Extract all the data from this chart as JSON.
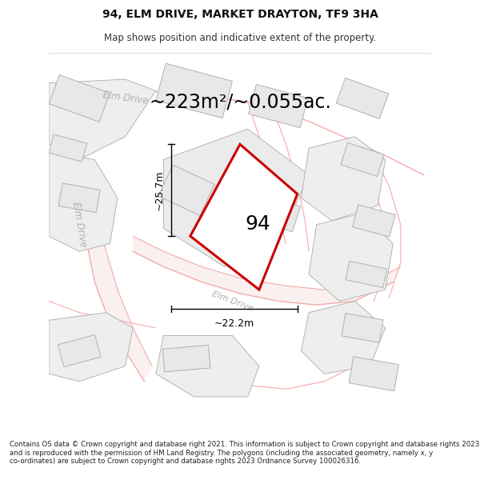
{
  "title": "94, ELM DRIVE, MARKET DRAYTON, TF9 3HA",
  "subtitle": "Map shows position and indicative extent of the property.",
  "footer": "Contains OS data © Crown copyright and database right 2021. This information is subject to Crown copyright and database rights 2023 and is reproduced with the permission of HM Land Registry. The polygons (including the associated geometry, namely x, y co-ordinates) are subject to Crown copyright and database rights 2023 Ordnance Survey 100026316.",
  "area_text": "~223m²/~0.055ac.",
  "label": "94",
  "dim_h": "~25.7m",
  "dim_w": "~22.2m",
  "map_bg": "#ffffff",
  "road_color": "#f5aaaa",
  "building_fill": "#e8e8e8",
  "building_edge": "#b0b0b0",
  "plot_fill": "#e8e8e8",
  "plot_edge": "#aaaaaa",
  "highlight_color": "#cc0000",
  "road_label_color": "#aaaaaa",
  "title_fontsize": 10,
  "subtitle_fontsize": 8.5,
  "footer_fontsize": 6.2,
  "area_fontsize": 17,
  "label_fontsize": 18,
  "dim_fontsize": 9
}
